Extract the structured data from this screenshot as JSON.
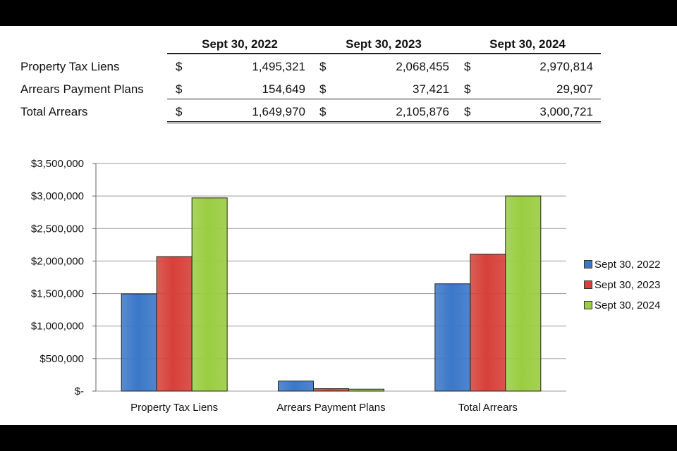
{
  "table": {
    "columns": [
      "Sept 30, 2022",
      "Sept 30, 2023",
      "Sept 30, 2024"
    ],
    "currency_symbol": "$",
    "rows": [
      {
        "label": "Property Tax Liens",
        "values": [
          "1,495,321",
          "2,068,455",
          "2,970,814"
        ]
      },
      {
        "label": "Arrears Payment Plans",
        "values": [
          "154,649",
          "37,421",
          "29,907"
        ]
      },
      {
        "label": "Total Arrears",
        "values": [
          "1,649,970",
          "2,105,876",
          "3,000,721"
        ]
      }
    ]
  },
  "chart_data": {
    "type": "bar",
    "categories": [
      "Property Tax Liens",
      "Arrears Payment Plans",
      "Total Arrears"
    ],
    "series": [
      {
        "name": "Sept 30, 2022",
        "color": "#3b78c8",
        "values": [
          1495321,
          154649,
          1649970
        ]
      },
      {
        "name": "Sept 30, 2023",
        "color": "#d6413a",
        "values": [
          2068455,
          37421,
          2105876
        ]
      },
      {
        "name": "Sept 30, 2024",
        "color": "#9acd42",
        "values": [
          2970814,
          29907,
          3000721
        ]
      }
    ],
    "ylim": [
      0,
      3500000
    ],
    "yticks": [
      0,
      500000,
      1000000,
      1500000,
      2000000,
      2500000,
      3000000,
      3500000
    ],
    "ytick_labels": [
      "$-",
      "$500,000",
      "$1,000,000",
      "$1,500,000",
      "$2,000,000",
      "$2,500,000",
      "$3,000,000",
      "$3,500,000"
    ],
    "grid": true,
    "legend": "right"
  }
}
